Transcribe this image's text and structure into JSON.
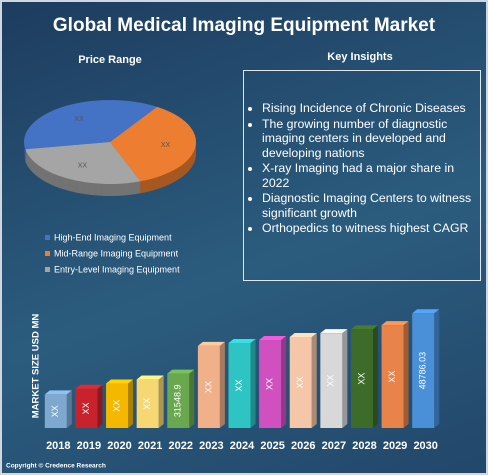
{
  "title": "Global Medical Imaging Equipment Market",
  "key_insights": {
    "title": "Key Insights",
    "items": [
      "Rising Incidence of Chronic Diseases",
      "The growing number of diagnostic imaging centers in developed and developing nations",
      "X-ray Imaging had a major share in 2022",
      "Diagnostic Imaging Centers to witness significant growth",
      "Orthopedics to witness highest CAGR"
    ]
  },
  "copyright": "Copyright © Credence Research",
  "chart_data": [
    {
      "type": "pie",
      "title": "Price Range",
      "categories": [
        "High-End Imaging Equipment",
        "Mid-Range Imaging Equipment",
        "Entry-Level Imaging Equipment"
      ],
      "values": [
        37,
        35,
        28
      ],
      "value_labels": [
        "XX",
        "XX",
        "XX"
      ],
      "colors": [
        "#4472c4",
        "#ed7d31",
        "#a5a5a5"
      ]
    },
    {
      "type": "bar",
      "y_label": "MARKET SIZE USD MN",
      "categories": [
        "2018",
        "2019",
        "2020",
        "2021",
        "2022",
        "2023",
        "2024",
        "2025",
        "2026",
        "2027",
        "2028",
        "2029",
        "2030"
      ],
      "values": [
        25600,
        27200,
        28700,
        29840,
        31548.9,
        39450,
        40300,
        41140,
        42000,
        43100,
        44200,
        45400,
        48786.03
      ],
      "value_labels": [
        "XX",
        "XX",
        "XX",
        "XX",
        "31548.9",
        "XX",
        "XX",
        "XX",
        "XX",
        "XX",
        "XX",
        "XX",
        "48786.03"
      ],
      "colors": [
        "#7fa8d0",
        "#c8232c",
        "#f5b800",
        "#f7d774",
        "#6aa84f",
        "#f0b08a",
        "#2ec4c4",
        "#d050c0",
        "#f5c6a8",
        "#d8d8d8",
        "#3d6b2a",
        "#e8844a",
        "#4a90d9"
      ],
      "ylim": [
        16000,
        50000
      ]
    }
  ]
}
